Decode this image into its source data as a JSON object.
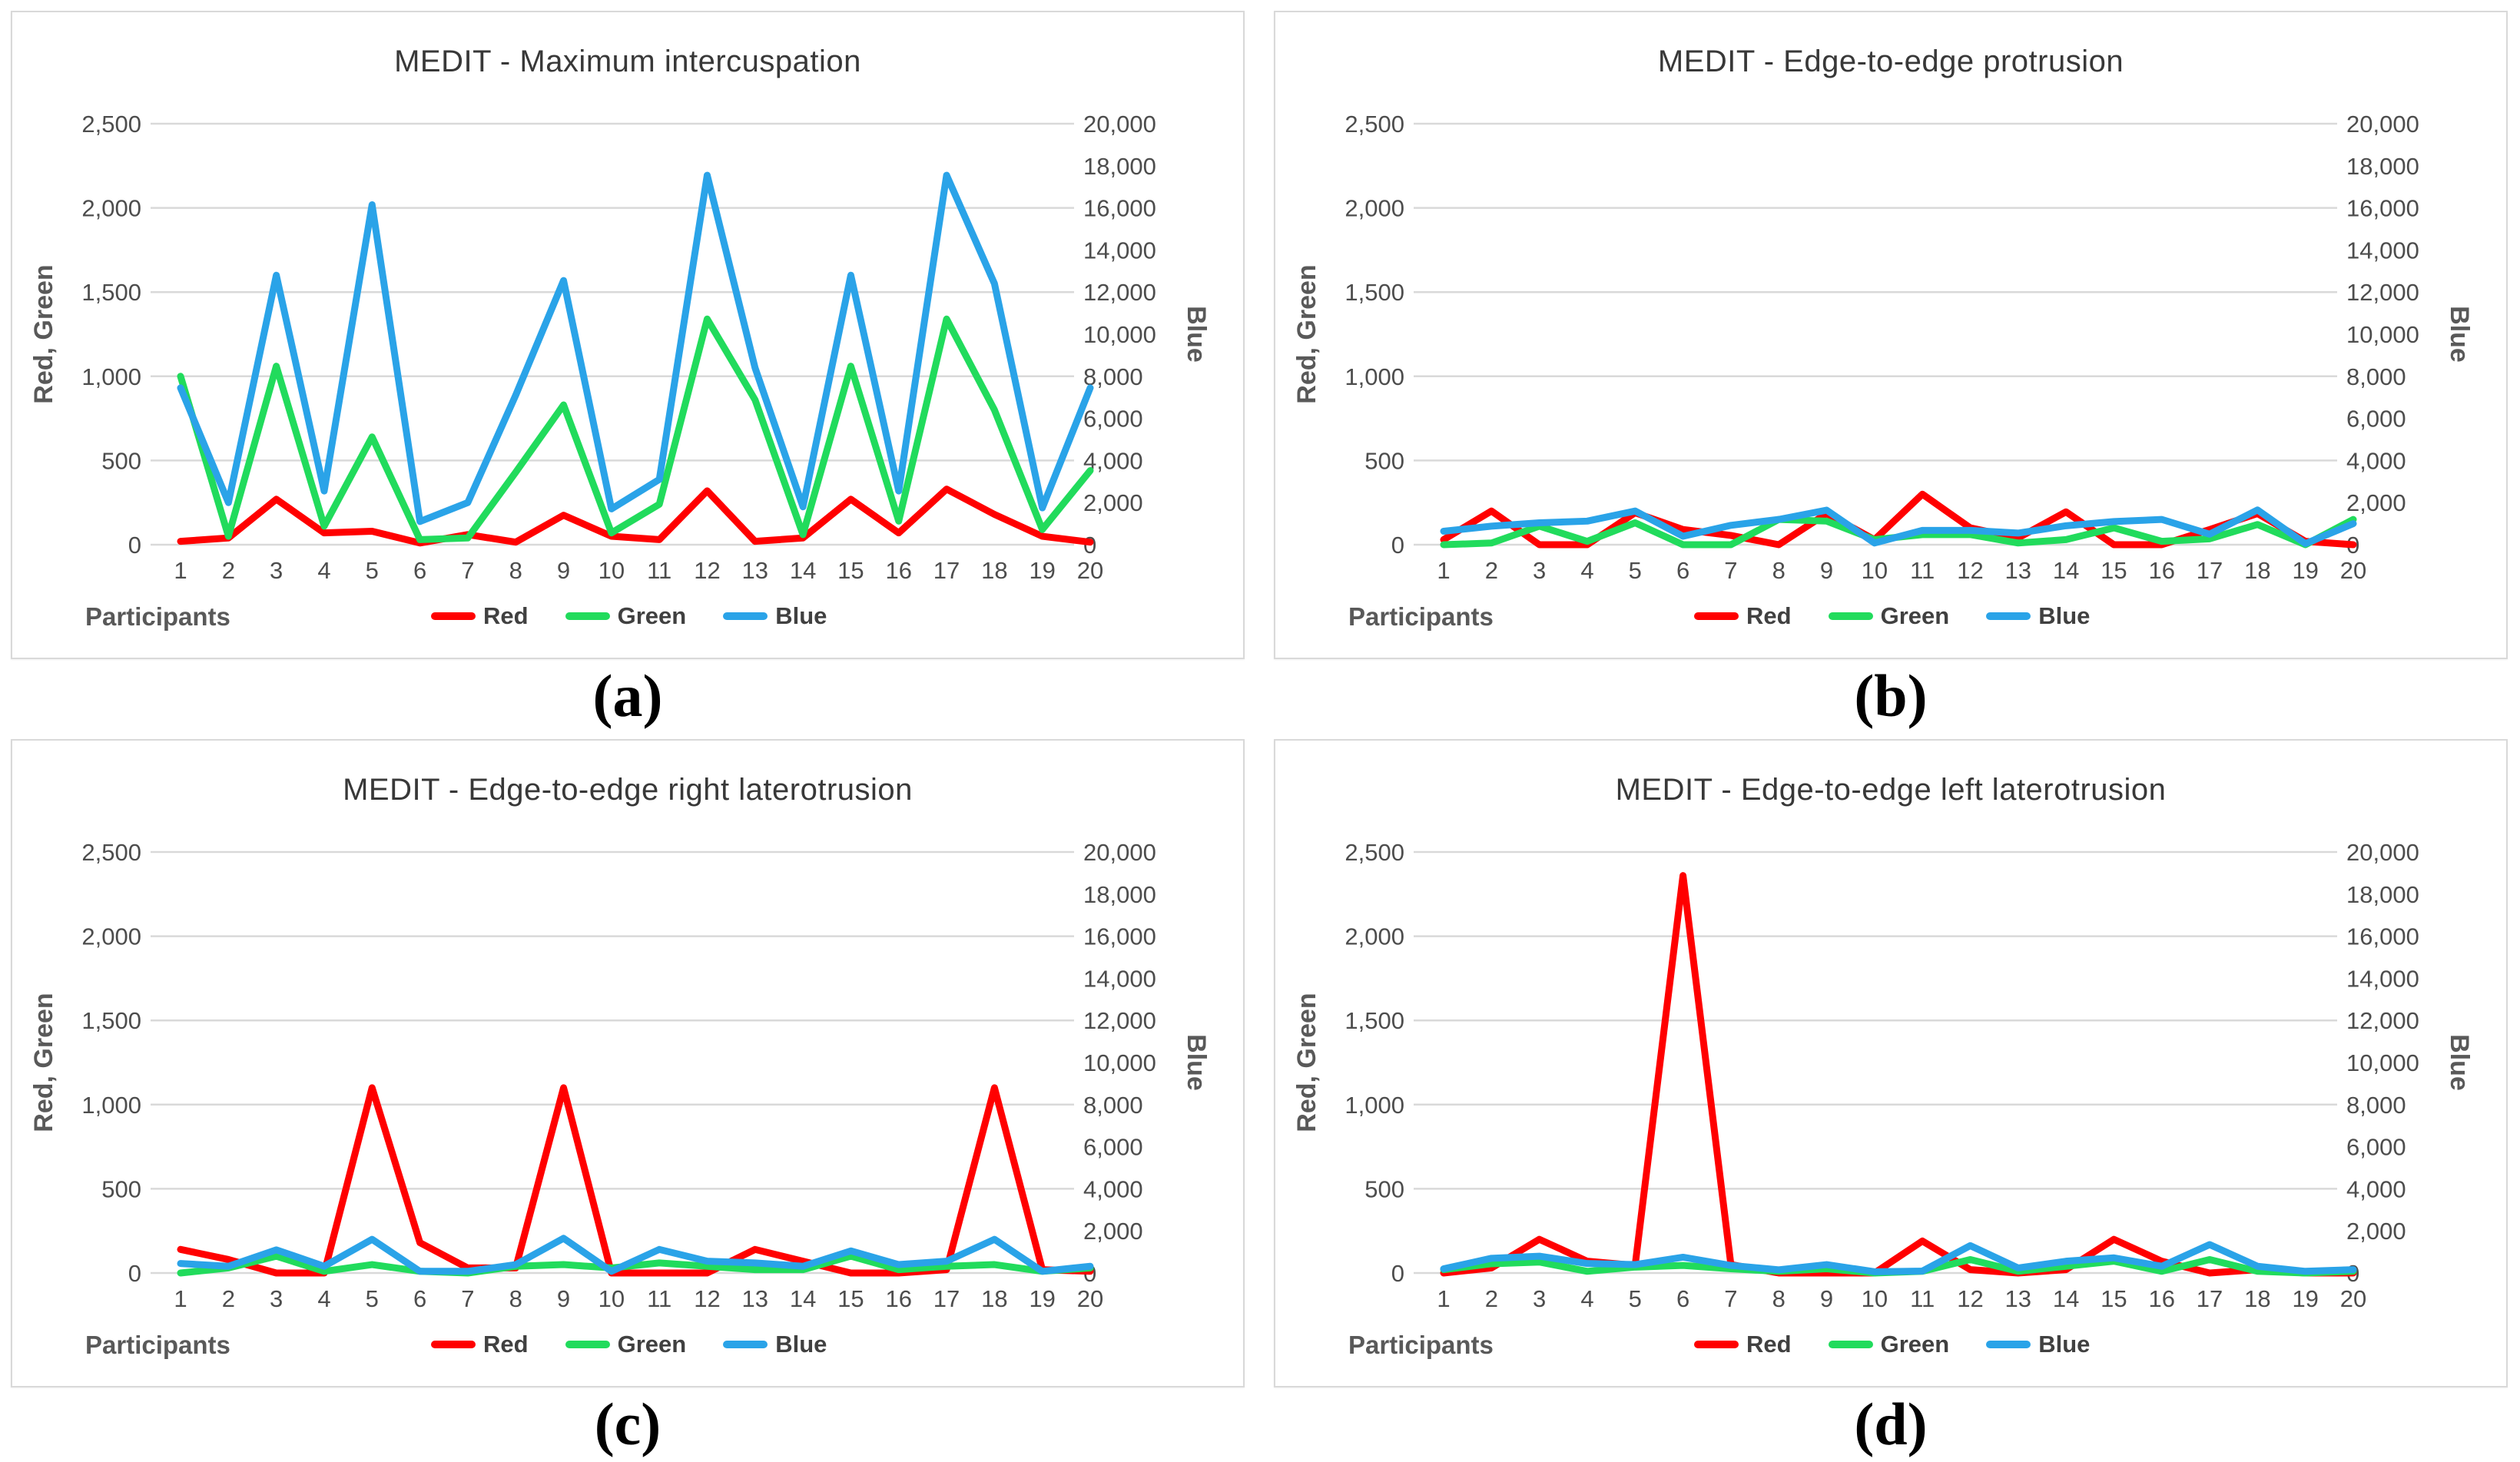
{
  "figure": {
    "legend": {
      "items": [
        {
          "label": "Red",
          "color": "#FF0000"
        },
        {
          "label": "Green",
          "color": "#21DB5C"
        },
        {
          "label": "Blue",
          "color": "#2AA3E8"
        }
      ]
    },
    "styles": {
      "grid_color": "#D9D9D9",
      "tick_text_color": "#4d4d4d",
      "axis_title_color": "#595959",
      "title_color": "#383838",
      "panel_border_color": "#D9D9D9"
    }
  },
  "chart_data": [
    {
      "type": "line",
      "panel_label": "(a)",
      "title": "MEDIT - Maximum intercuspation",
      "x": [
        1,
        2,
        3,
        4,
        5,
        6,
        7,
        8,
        9,
        10,
        11,
        12,
        13,
        14,
        15,
        16,
        17,
        18,
        19,
        20
      ],
      "xlabel": "Participants",
      "ylabel_left": "Red, Green",
      "ylabel_right": "Blue",
      "ylim_left": [
        0,
        2500
      ],
      "ylim_right": [
        0,
        20000
      ],
      "yticks_left": [
        0,
        500,
        1000,
        1500,
        2000,
        2500
      ],
      "yticks_right": [
        0,
        2000,
        4000,
        6000,
        8000,
        10000,
        12000,
        14000,
        16000,
        18000,
        20000
      ],
      "grid": "horizontal",
      "legend_position": "bottom",
      "series": [
        {
          "name": "Red",
          "axis": "left",
          "color": "#FF0000",
          "values": [
            20,
            40,
            270,
            70,
            80,
            10,
            60,
            15,
            175,
            50,
            30,
            320,
            20,
            40,
            270,
            70,
            330,
            180,
            50,
            15
          ]
        },
        {
          "name": "Green",
          "axis": "left",
          "color": "#21DB5C",
          "values": [
            1000,
            50,
            1060,
            110,
            640,
            30,
            40,
            430,
            830,
            70,
            240,
            1340,
            860,
            60,
            1060,
            140,
            1340,
            800,
            90,
            440
          ]
        },
        {
          "name": "Blue",
          "axis": "right",
          "color": "#2AA3E8",
          "values": [
            7450,
            2000,
            12800,
            2550,
            16150,
            1100,
            2000,
            7100,
            12550,
            1700,
            3100,
            17550,
            8400,
            1800,
            12800,
            2550,
            17550,
            12400,
            1750,
            7450
          ]
        }
      ]
    },
    {
      "type": "line",
      "panel_label": "(b)",
      "title": "MEDIT - Edge-to-edge protrusion",
      "x": [
        1,
        2,
        3,
        4,
        5,
        6,
        7,
        8,
        9,
        10,
        11,
        12,
        13,
        14,
        15,
        16,
        17,
        18,
        19,
        20
      ],
      "xlabel": "Participants",
      "ylabel_left": "Red, Green",
      "ylabel_right": "Blue",
      "ylim_left": [
        0,
        2500
      ],
      "ylim_right": [
        0,
        20000
      ],
      "yticks_left": [
        0,
        500,
        1000,
        1500,
        2000,
        2500
      ],
      "yticks_right": [
        0,
        2000,
        4000,
        6000,
        8000,
        10000,
        12000,
        14000,
        16000,
        18000,
        20000
      ],
      "grid": "horizontal",
      "legend_position": "bottom",
      "series": [
        {
          "name": "Red",
          "axis": "left",
          "color": "#FF0000",
          "values": [
            30,
            200,
            0,
            0,
            190,
            90,
            55,
            0,
            185,
            30,
            300,
            100,
            40,
            195,
            0,
            0,
            90,
            185,
            20,
            0
          ]
        },
        {
          "name": "Green",
          "axis": "left",
          "color": "#21DB5C",
          "values": [
            0,
            10,
            110,
            20,
            130,
            0,
            0,
            150,
            140,
            30,
            60,
            60,
            10,
            30,
            100,
            20,
            35,
            120,
            0,
            150
          ]
        },
        {
          "name": "Blue",
          "axis": "right",
          "color": "#2AA3E8",
          "values": [
            640,
            880,
            1040,
            1120,
            1600,
            400,
            920,
            1200,
            1640,
            80,
            680,
            680,
            550,
            900,
            1100,
            1200,
            500,
            1650,
            50,
            1000
          ]
        }
      ]
    },
    {
      "type": "line",
      "panel_label": "(c)",
      "title": "MEDIT - Edge-to-edge right laterotrusion",
      "x": [
        1,
        2,
        3,
        4,
        5,
        6,
        7,
        8,
        9,
        10,
        11,
        12,
        13,
        14,
        15,
        16,
        17,
        18,
        19,
        20
      ],
      "xlabel": "Participants",
      "ylabel_left": "Red, Green",
      "ylabel_right": "Blue",
      "ylim_left": [
        0,
        2500
      ],
      "ylim_right": [
        0,
        20000
      ],
      "yticks_left": [
        0,
        500,
        1000,
        1500,
        2000,
        2500
      ],
      "yticks_right": [
        0,
        2000,
        4000,
        6000,
        8000,
        10000,
        12000,
        14000,
        16000,
        18000,
        20000
      ],
      "grid": "horizontal",
      "legend_position": "bottom",
      "series": [
        {
          "name": "Red",
          "axis": "left",
          "color": "#FF0000",
          "values": [
            140,
            80,
            0,
            0,
            1100,
            180,
            30,
            30,
            1100,
            0,
            0,
            0,
            140,
            70,
            0,
            0,
            20,
            1100,
            20,
            10
          ]
        },
        {
          "name": "Green",
          "axis": "left",
          "color": "#21DB5C",
          "values": [
            0,
            30,
            100,
            10,
            50,
            10,
            0,
            40,
            50,
            30,
            60,
            40,
            20,
            20,
            100,
            20,
            40,
            50,
            10,
            30
          ]
        },
        {
          "name": "Blue",
          "axis": "right",
          "color": "#2AA3E8",
          "values": [
            450,
            320,
            1100,
            320,
            1600,
            80,
            80,
            400,
            1650,
            80,
            1120,
            560,
            480,
            320,
            1050,
            400,
            560,
            1600,
            80,
            320
          ]
        }
      ]
    },
    {
      "type": "line",
      "panel_label": "(d)",
      "title": "MEDIT - Edge-to-edge left laterotrusion",
      "x": [
        1,
        2,
        3,
        4,
        5,
        6,
        7,
        8,
        9,
        10,
        11,
        12,
        13,
        14,
        15,
        16,
        17,
        18,
        19,
        20
      ],
      "xlabel": "Participants",
      "ylabel_left": "Red, Green",
      "ylabel_right": "Blue",
      "ylim_left": [
        0,
        2500
      ],
      "ylim_right": [
        0,
        20000
      ],
      "yticks_left": [
        0,
        500,
        1000,
        1500,
        2000,
        2500
      ],
      "yticks_right": [
        0,
        2000,
        4000,
        6000,
        8000,
        10000,
        12000,
        14000,
        16000,
        18000,
        20000
      ],
      "grid": "horizontal",
      "legend_position": "bottom",
      "series": [
        {
          "name": "Red",
          "axis": "left",
          "color": "#FF0000",
          "values": [
            0,
            30,
            200,
            70,
            45,
            2360,
            50,
            0,
            0,
            0,
            190,
            20,
            0,
            20,
            200,
            70,
            0,
            20,
            0,
            0
          ]
        },
        {
          "name": "Green",
          "axis": "left",
          "color": "#21DB5C",
          "values": [
            20,
            55,
            65,
            10,
            35,
            45,
            25,
            10,
            25,
            0,
            10,
            80,
            10,
            40,
            70,
            10,
            80,
            10,
            0,
            10
          ]
        },
        {
          "name": "Blue",
          "axis": "right",
          "color": "#2AA3E8",
          "values": [
            200,
            700,
            800,
            450,
            400,
            750,
            360,
            150,
            400,
            60,
            90,
            1300,
            240,
            560,
            720,
            320,
            1350,
            320,
            80,
            160
          ]
        }
      ]
    }
  ]
}
